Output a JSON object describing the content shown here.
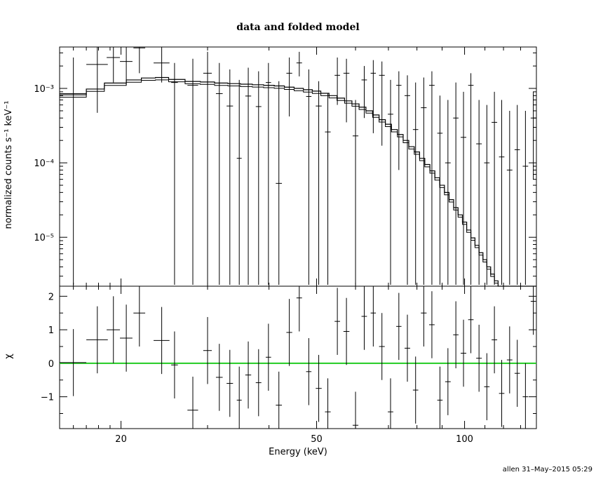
{
  "chart_data": [
    {
      "panel": "top",
      "type": "scatter",
      "title": "data and folded model",
      "ylabel": "normalized counts s⁻¹ keV⁻¹",
      "yscale": "log",
      "xscale": "log",
      "xlim": [
        15,
        140
      ],
      "ylim": [
        2.2e-06,
        0.0036
      ],
      "ytick_labels": [
        "10⁻³",
        "10⁻⁴",
        "10⁻⁵"
      ],
      "ytick_values": [
        0.001,
        0.0001,
        1e-05
      ],
      "data_series": {
        "name": "data",
        "points": [
          {
            "x": 16.0,
            "xerr": 1.0,
            "y": 0.00085,
            "ylo": 2.3e-06,
            "yhi": 0.0026
          },
          {
            "x": 17.9,
            "xerr": 0.9,
            "y": 0.0021,
            "ylo": 0.00047,
            "yhi": 0.0036
          },
          {
            "x": 19.3,
            "xerr": 0.6,
            "y": 0.0026,
            "ylo": 0.0012,
            "yhi": 0.0036
          },
          {
            "x": 20.5,
            "xerr": 0.6,
            "y": 0.0023,
            "ylo": 0.0011,
            "yhi": 0.0036
          },
          {
            "x": 21.8,
            "xerr": 0.6,
            "y": 0.0035,
            "ylo": 0.0016,
            "yhi": 0.0036
          },
          {
            "x": 24.2,
            "xerr": 0.9,
            "y": 0.0022,
            "ylo": 0.0012,
            "yhi": 0.0036
          },
          {
            "x": 25.7,
            "xerr": 0.4,
            "y": 0.0012,
            "ylo": 2.3e-06,
            "yhi": 0.0022
          },
          {
            "x": 28.0,
            "xerr": 0.7,
            "y": 0.0011,
            "ylo": 2.3e-06,
            "yhi": 0.0025
          },
          {
            "x": 30.0,
            "xerr": 0.6,
            "y": 0.0016,
            "ylo": 2.3e-06,
            "yhi": 0.0031
          },
          {
            "x": 31.7,
            "xerr": 0.5,
            "y": 0.00085,
            "ylo": 2.3e-06,
            "yhi": 0.0022
          },
          {
            "x": 33.3,
            "xerr": 0.5,
            "y": 0.00058,
            "ylo": 2.3e-06,
            "yhi": 0.0018
          },
          {
            "x": 34.8,
            "xerr": 0.4,
            "y": 0.000115,
            "ylo": 2.3e-06,
            "yhi": 0.0013
          },
          {
            "x": 36.3,
            "xerr": 0.5,
            "y": 0.00079,
            "ylo": 2.3e-06,
            "yhi": 0.0019
          },
          {
            "x": 38.1,
            "xerr": 0.5,
            "y": 0.00057,
            "ylo": 2.3e-06,
            "yhi": 0.0017
          },
          {
            "x": 39.9,
            "xerr": 0.5,
            "y": 0.0012,
            "ylo": 2.3e-06,
            "yhi": 0.0022
          },
          {
            "x": 41.9,
            "xerr": 0.6,
            "y": 5.3e-05,
            "ylo": 2.3e-06,
            "yhi": 0.00125
          },
          {
            "x": 44.0,
            "xerr": 0.6,
            "y": 0.0016,
            "ylo": 0.00042,
            "yhi": 0.0026
          },
          {
            "x": 46.1,
            "xerr": 0.6,
            "y": 0.0022,
            "ylo": 0.00145,
            "yhi": 0.0031
          },
          {
            "x": 48.2,
            "xerr": 0.6,
            "y": 0.00078,
            "ylo": 2.3e-06,
            "yhi": 0.0018
          },
          {
            "x": 50.5,
            "xerr": 0.7,
            "y": 0.00058,
            "ylo": 2.3e-06,
            "yhi": 0.00125
          },
          {
            "x": 52.7,
            "xerr": 0.7,
            "y": 0.00026,
            "ylo": 2.3e-06,
            "yhi": 0.00086
          },
          {
            "x": 55.1,
            "xerr": 0.7,
            "y": 0.0015,
            "ylo": 0.0006,
            "yhi": 0.0026
          },
          {
            "x": 57.5,
            "xerr": 0.8,
            "y": 0.0016,
            "ylo": 0.00035,
            "yhi": 0.0025
          },
          {
            "x": 60.0,
            "xerr": 0.8,
            "y": 0.00023,
            "ylo": 2.3e-06,
            "yhi": 0.0007
          },
          {
            "x": 62.5,
            "xerr": 0.8,
            "y": 0.0013,
            "ylo": 0.0004,
            "yhi": 0.002
          },
          {
            "x": 65.2,
            "xerr": 0.8,
            "y": 0.0016,
            "ylo": 0.00025,
            "yhi": 0.0024
          },
          {
            "x": 67.9,
            "xerr": 0.9,
            "y": 0.0015,
            "ylo": 0.00017,
            "yhi": 0.0023
          },
          {
            "x": 70.7,
            "xerr": 0.9,
            "y": 0.00045,
            "ylo": 2.3e-06,
            "yhi": 0.0013
          },
          {
            "x": 73.5,
            "xerr": 0.9,
            "y": 0.0011,
            "ylo": 8e-05,
            "yhi": 0.0017
          },
          {
            "x": 76.5,
            "xerr": 1.0,
            "y": 0.0008,
            "ylo": 2.3e-06,
            "yhi": 0.0015
          },
          {
            "x": 79.5,
            "xerr": 1.0,
            "y": 0.00028,
            "ylo": 2.3e-06,
            "yhi": 0.0012
          },
          {
            "x": 82.6,
            "xerr": 1.1,
            "y": 0.00055,
            "ylo": 2.3e-06,
            "yhi": 0.0014
          },
          {
            "x": 85.8,
            "xerr": 1.1,
            "y": 0.0011,
            "ylo": 2.3e-06,
            "yhi": 0.0017
          },
          {
            "x": 89.1,
            "xerr": 1.1,
            "y": 0.00025,
            "ylo": 2.3e-06,
            "yhi": 0.0008
          },
          {
            "x": 92.5,
            "xerr": 1.2,
            "y": 0.0001,
            "ylo": 2.3e-06,
            "yhi": 0.0007
          },
          {
            "x": 96.0,
            "xerr": 1.2,
            "y": 0.0004,
            "ylo": 2.3e-06,
            "yhi": 0.0012
          },
          {
            "x": 99.5,
            "xerr": 1.3,
            "y": 0.00022,
            "ylo": 2.3e-06,
            "yhi": 0.0009
          },
          {
            "x": 103.0,
            "xerr": 1.3,
            "y": 0.0011,
            "ylo": 2.3e-06,
            "yhi": 0.0016
          },
          {
            "x": 107.0,
            "xerr": 1.4,
            "y": 0.00018,
            "ylo": 2.3e-06,
            "yhi": 0.0007
          },
          {
            "x": 111.0,
            "xerr": 1.4,
            "y": 0.0001,
            "ylo": 2.3e-06,
            "yhi": 0.0006
          },
          {
            "x": 115.0,
            "xerr": 1.5,
            "y": 0.00035,
            "ylo": 2.3e-06,
            "yhi": 0.0009
          },
          {
            "x": 119.0,
            "xerr": 1.5,
            "y": 0.00012,
            "ylo": 2.3e-06,
            "yhi": 0.0007
          },
          {
            "x": 123.5,
            "xerr": 1.6,
            "y": 8e-05,
            "ylo": 2.3e-06,
            "yhi": 0.0005
          },
          {
            "x": 128.0,
            "xerr": 1.6,
            "y": 0.00015,
            "ylo": 2.3e-06,
            "yhi": 0.0006
          },
          {
            "x": 133.0,
            "xerr": 1.7,
            "y": 9e-05,
            "ylo": 2.3e-06,
            "yhi": 0.0005
          },
          {
            "x": 138.0,
            "xerr": 1.7,
            "y": 0.0004,
            "ylo": 6e-05,
            "yhi": 0.0009
          }
        ]
      },
      "model_series": {
        "name": "model",
        "edges": [
          15,
          17,
          18.5,
          20.5,
          22,
          23.5,
          25,
          27,
          29,
          31,
          33,
          35,
          37,
          39,
          41,
          43,
          45,
          47,
          49,
          51,
          53,
          55,
          57,
          59,
          61,
          63,
          65,
          67,
          69,
          71,
          73,
          75,
          77,
          79,
          81,
          83,
          85,
          87,
          89,
          91,
          93,
          95,
          97,
          99,
          101,
          103,
          105,
          107,
          109,
          111,
          113,
          115,
          117,
          119,
          121,
          123,
          125,
          127,
          129,
          131,
          133,
          135,
          137,
          140
        ],
        "values": [
          0.00082,
          0.00098,
          0.00118,
          0.0013,
          0.00138,
          0.0014,
          0.00132,
          0.00124,
          0.00122,
          0.00118,
          0.00116,
          0.00114,
          0.00112,
          0.0011,
          0.00108,
          0.00104,
          0.001,
          0.00096,
          0.00092,
          0.00086,
          0.0008,
          0.00074,
          0.00068,
          0.00062,
          0.00056,
          0.0005,
          0.00044,
          0.00038,
          0.00033,
          0.00028,
          0.00024,
          0.0002,
          0.000165,
          0.00014,
          0.000115,
          9.5e-05,
          7.8e-05,
          6.3e-05,
          5e-05,
          4e-05,
          3.2e-05,
          2.5e-05,
          2e-05,
          1.6e-05,
          1.25e-05,
          9.8e-06,
          7.8e-06,
          6.2e-06,
          5e-06,
          4e-06,
          3.2e-06,
          2.6e-06,
          2.2e-06,
          1.8e-06,
          1.5e-06,
          1.2e-06,
          1e-06,
          8e-07,
          7e-07,
          6e-07,
          5e-07,
          4e-07,
          3e-07
        ]
      }
    },
    {
      "panel": "bottom",
      "type": "scatter",
      "xlabel": "Energy (keV)",
      "ylabel": "χ",
      "xscale": "log",
      "xlim": [
        15,
        140
      ],
      "ylim": [
        -1.95,
        2.3
      ],
      "ytick_labels": [
        "2",
        "1",
        "0",
        "−1"
      ],
      "ytick_values": [
        2,
        1,
        0,
        -1
      ],
      "xtick_labels": [
        "20",
        "50",
        "100"
      ],
      "xtick_values": [
        20,
        50,
        100
      ],
      "zero_line_color": "#22cc22",
      "points": [
        {
          "x": 16.0,
          "xerr": 1.0,
          "y": 0.02,
          "err": 1.0
        },
        {
          "x": 17.9,
          "xerr": 0.9,
          "y": 0.7,
          "err": 1.0
        },
        {
          "x": 19.3,
          "xerr": 0.6,
          "y": 1.0,
          "err": 1.0
        },
        {
          "x": 20.5,
          "xerr": 0.6,
          "y": 0.75,
          "err": 1.0
        },
        {
          "x": 21.8,
          "xerr": 0.6,
          "y": 1.5,
          "err": 1.0
        },
        {
          "x": 24.2,
          "xerr": 0.9,
          "y": 0.68,
          "err": 1.0
        },
        {
          "x": 25.7,
          "xerr": 0.4,
          "y": -0.05,
          "err": 1.0
        },
        {
          "x": 28.0,
          "xerr": 0.7,
          "y": -1.4,
          "err": 1.0
        },
        {
          "x": 30.0,
          "xerr": 0.6,
          "y": 0.38,
          "err": 1.0
        },
        {
          "x": 31.7,
          "xerr": 0.5,
          "y": -0.42,
          "err": 1.0
        },
        {
          "x": 33.3,
          "xerr": 0.5,
          "y": -0.6,
          "err": 1.0
        },
        {
          "x": 34.8,
          "xerr": 0.4,
          "y": -1.1,
          "err": 1.0
        },
        {
          "x": 36.3,
          "xerr": 0.5,
          "y": -0.35,
          "err": 1.0
        },
        {
          "x": 38.1,
          "xerr": 0.5,
          "y": -0.58,
          "err": 1.0
        },
        {
          "x": 39.9,
          "xerr": 0.5,
          "y": 0.18,
          "err": 1.0
        },
        {
          "x": 41.9,
          "xerr": 0.6,
          "y": -1.25,
          "err": 1.0
        },
        {
          "x": 44.0,
          "xerr": 0.6,
          "y": 0.92,
          "err": 1.0
        },
        {
          "x": 46.1,
          "xerr": 0.6,
          "y": 1.95,
          "err": 1.0
        },
        {
          "x": 48.2,
          "xerr": 0.6,
          "y": -0.25,
          "err": 1.0
        },
        {
          "x": 50.5,
          "xerr": 0.7,
          "y": -0.75,
          "err": 1.0
        },
        {
          "x": 52.7,
          "xerr": 0.7,
          "y": -1.45,
          "err": 1.0
        },
        {
          "x": 55.1,
          "xerr": 0.7,
          "y": 1.25,
          "err": 1.0
        },
        {
          "x": 57.5,
          "xerr": 0.8,
          "y": 0.95,
          "err": 1.0
        },
        {
          "x": 60.0,
          "xerr": 0.8,
          "y": -1.85,
          "err": 1.0
        },
        {
          "x": 62.5,
          "xerr": 0.8,
          "y": 1.4,
          "err": 1.0
        },
        {
          "x": 65.2,
          "xerr": 0.8,
          "y": 1.5,
          "err": 1.0
        },
        {
          "x": 67.9,
          "xerr": 0.9,
          "y": 0.5,
          "err": 1.0
        },
        {
          "x": 70.7,
          "xerr": 0.9,
          "y": -1.45,
          "err": 1.0
        },
        {
          "x": 73.5,
          "xerr": 0.9,
          "y": 1.1,
          "err": 1.0
        },
        {
          "x": 76.5,
          "xerr": 1.0,
          "y": 0.45,
          "err": 1.0
        },
        {
          "x": 79.5,
          "xerr": 1.0,
          "y": -0.8,
          "err": 1.0
        },
        {
          "x": 82.6,
          "xerr": 1.1,
          "y": 1.5,
          "err": 1.0
        },
        {
          "x": 85.8,
          "xerr": 1.1,
          "y": 1.15,
          "err": 1.0
        },
        {
          "x": 89.1,
          "xerr": 1.1,
          "y": -1.1,
          "err": 1.0
        },
        {
          "x": 92.5,
          "xerr": 1.2,
          "y": -0.55,
          "err": 1.0
        },
        {
          "x": 96.0,
          "xerr": 1.2,
          "y": 0.85,
          "err": 1.0
        },
        {
          "x": 99.5,
          "xerr": 1.3,
          "y": 0.3,
          "err": 1.0
        },
        {
          "x": 103.0,
          "xerr": 1.3,
          "y": 1.3,
          "err": 1.0
        },
        {
          "x": 107.0,
          "xerr": 1.4,
          "y": 0.15,
          "err": 1.0
        },
        {
          "x": 111.0,
          "xerr": 1.4,
          "y": -0.7,
          "err": 1.0
        },
        {
          "x": 115.0,
          "xerr": 1.5,
          "y": 0.7,
          "err": 1.0
        },
        {
          "x": 119.0,
          "xerr": 1.5,
          "y": -0.9,
          "err": 1.0
        },
        {
          "x": 123.5,
          "xerr": 1.6,
          "y": 0.1,
          "err": 1.0
        },
        {
          "x": 128.0,
          "xerr": 1.6,
          "y": -0.3,
          "err": 1.0
        },
        {
          "x": 133.0,
          "xerr": 1.7,
          "y": -1.0,
          "err": 1.0
        },
        {
          "x": 138.0,
          "xerr": 1.7,
          "y": 1.85,
          "err": 1.0
        }
      ]
    }
  ],
  "footer": {
    "credit": "allen 31–May–2015 05:29"
  }
}
